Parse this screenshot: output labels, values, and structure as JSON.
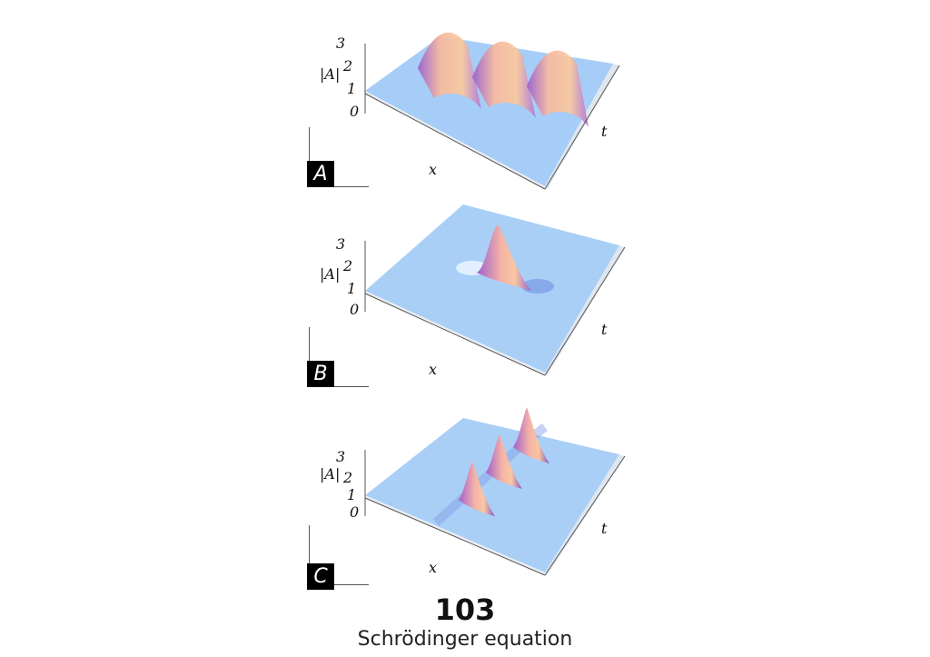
{
  "panels": [
    {
      "label": "A",
      "z_axis_label": "|A|",
      "z_ticks": [
        "0",
        "1",
        "2",
        "3"
      ],
      "x_label": "x",
      "t_label": "t",
      "surface": "periodic-breather"
    },
    {
      "label": "B",
      "z_axis_label": "|A|",
      "z_ticks": [
        "0",
        "1",
        "2",
        "3"
      ],
      "x_label": "x",
      "t_label": "t",
      "surface": "peregrine-soliton"
    },
    {
      "label": "C",
      "z_axis_label": "|A|",
      "z_ticks": [
        "0",
        "1",
        "2",
        "3"
      ],
      "x_label": "x",
      "t_label": "t",
      "surface": "kuznetsov-ma-breather"
    }
  ],
  "footer": {
    "number": "103",
    "title": "Schrödinger equation"
  },
  "colors": {
    "surface": "#9ec7f5",
    "peak": "#f7c09a",
    "shade": "#b06bd6"
  }
}
